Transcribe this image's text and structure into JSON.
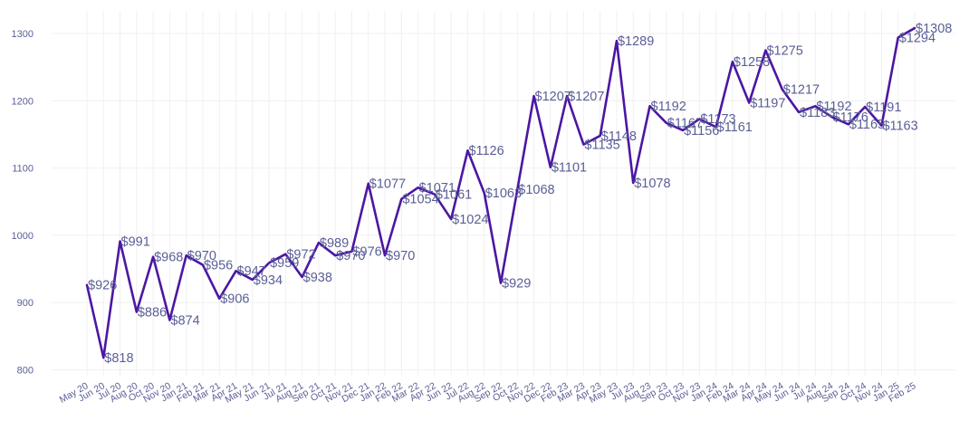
{
  "chart_data": {
    "type": "line",
    "title": "",
    "xlabel": "",
    "ylabel": "",
    "ylim": [
      790,
      1335
    ],
    "yticks": [
      800,
      900,
      1000,
      1100,
      1200,
      1300
    ],
    "y_tick_labels": [
      "800",
      "900",
      "1000",
      "1100",
      "1200",
      "1300"
    ],
    "grid": true,
    "legend": "none",
    "line_color": "#4b17a3",
    "text_color": "#5a5e96",
    "x_labels": [
      "May 20",
      "Jun 20",
      "Jul 20",
      "Aug 20",
      "Oct 20",
      "Nov 20",
      "Jan 21",
      "Feb 21",
      "Mar 21",
      "Apr 21",
      "May 21",
      "Jun 21",
      "Jul 21",
      "Aug 21",
      "Sep 21",
      "Oct 21",
      "Nov 21",
      "Dec 21",
      "Jan 22",
      "Feb 22",
      "Mar 22",
      "Apr 22",
      "Jun 22",
      "Jul 22",
      "Aug 22",
      "Sep 22",
      "Oct 22",
      "Nov 22",
      "Dec 22",
      "Feb 23",
      "Mar 23",
      "Apr 23",
      "May 23",
      "Jul 23",
      "Aug 23",
      "Sep 23",
      "Oct 23",
      "Nov 23",
      "Jan 24",
      "Feb 24",
      "Mar 24",
      "Apr 24",
      "May 24",
      "Jun 24",
      "Jul 24",
      "Aug 24",
      "Sep 24",
      "Oct 24",
      "Nov 24",
      "Jan 25",
      "Feb 25"
    ],
    "series": [
      {
        "values": [
          926,
          818,
          991,
          886,
          968,
          874,
          970,
          956,
          906,
          947,
          934,
          959,
          972,
          938,
          989,
          970,
          976,
          1077,
          970,
          1054,
          1071,
          1061,
          1024,
          1126,
          1063,
          929,
          1068,
          1207,
          1101,
          1207,
          1135,
          1148,
          1289,
          1078,
          1192,
          1167,
          1156,
          1173,
          1161,
          1258,
          1197,
          1275,
          1217,
          1183,
          1192,
          1176,
          1165,
          1191,
          1163,
          1294,
          1308
        ],
        "labels": [
          "$926",
          "$818",
          "$991",
          "$886",
          "$968",
          "$874",
          "$970",
          "$956",
          "$906",
          "$947",
          "$934",
          "$959",
          "$972",
          "$938",
          "$989",
          "$970",
          "$976",
          "$1077",
          "$970",
          "$1054",
          "$1071",
          "$1061",
          "$1024",
          "$1126",
          "$1063",
          "$929",
          "$1068",
          "$1207",
          "$1101",
          "$1207",
          "$1135",
          "$1148",
          "$1289",
          "$1078",
          "$1192",
          "$1167",
          "$1156",
          "$1173",
          "$1161",
          "$1258",
          "$1197",
          "$1275",
          "$1217",
          "$1183",
          "$1192",
          "$1176",
          "$1165",
          "$1191",
          "$1163",
          "$1294",
          "$1308"
        ]
      }
    ]
  }
}
